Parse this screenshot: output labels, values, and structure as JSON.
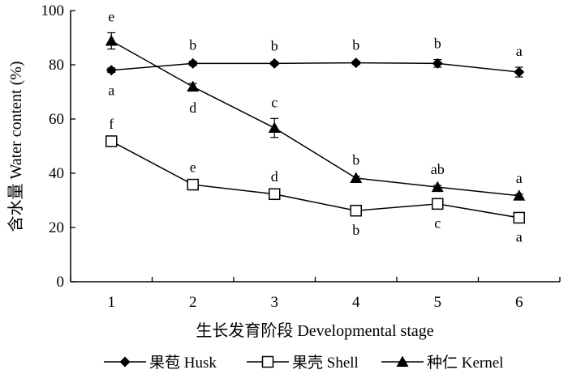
{
  "chart_data": {
    "type": "line",
    "x": [
      1,
      2,
      3,
      4,
      5,
      6
    ],
    "xlabel": "生长发育阶段 Developmental stage",
    "ylabel": "含水量 Water content (%)",
    "ylim": [
      0,
      100
    ],
    "yticks": [
      0,
      20,
      40,
      60,
      80,
      100
    ],
    "grid": false,
    "legend_position": "bottom",
    "series": [
      {
        "name": "果苞 Husk",
        "marker": "diamond-filled",
        "values": [
          78,
          80.5,
          80.5,
          80.7,
          80.5,
          77.3
        ],
        "errors": [
          0.8,
          0.8,
          0.6,
          0.6,
          1.4,
          1.8
        ],
        "letters": [
          "a",
          "b",
          "b",
          "b",
          "b",
          "a"
        ],
        "letter_side": [
          "below",
          "above",
          "above",
          "above",
          "above",
          "above"
        ]
      },
      {
        "name": "果壳 Shell",
        "marker": "square-open",
        "values": [
          51.8,
          35.8,
          32.3,
          26.2,
          28.7,
          23.6
        ],
        "errors": [
          0.5,
          0.5,
          0.5,
          0.5,
          0.5,
          0.5
        ],
        "letters": [
          "f",
          "e",
          "d",
          "b",
          "c",
          "a"
        ],
        "letter_side": [
          "above",
          "above",
          "above",
          "below",
          "below",
          "below"
        ]
      },
      {
        "name": "种仁 Kernel",
        "marker": "triangle-filled",
        "values": [
          88.8,
          71.9,
          56.7,
          38.2,
          34.9,
          31.7
        ],
        "errors": [
          3.0,
          1.2,
          3.5,
          0.7,
          0.6,
          0.6
        ],
        "letters": [
          "e",
          "d",
          "c",
          "b",
          "ab",
          "a"
        ],
        "letter_side": [
          "above",
          "below",
          "above",
          "above",
          "above",
          "above"
        ]
      }
    ]
  }
}
